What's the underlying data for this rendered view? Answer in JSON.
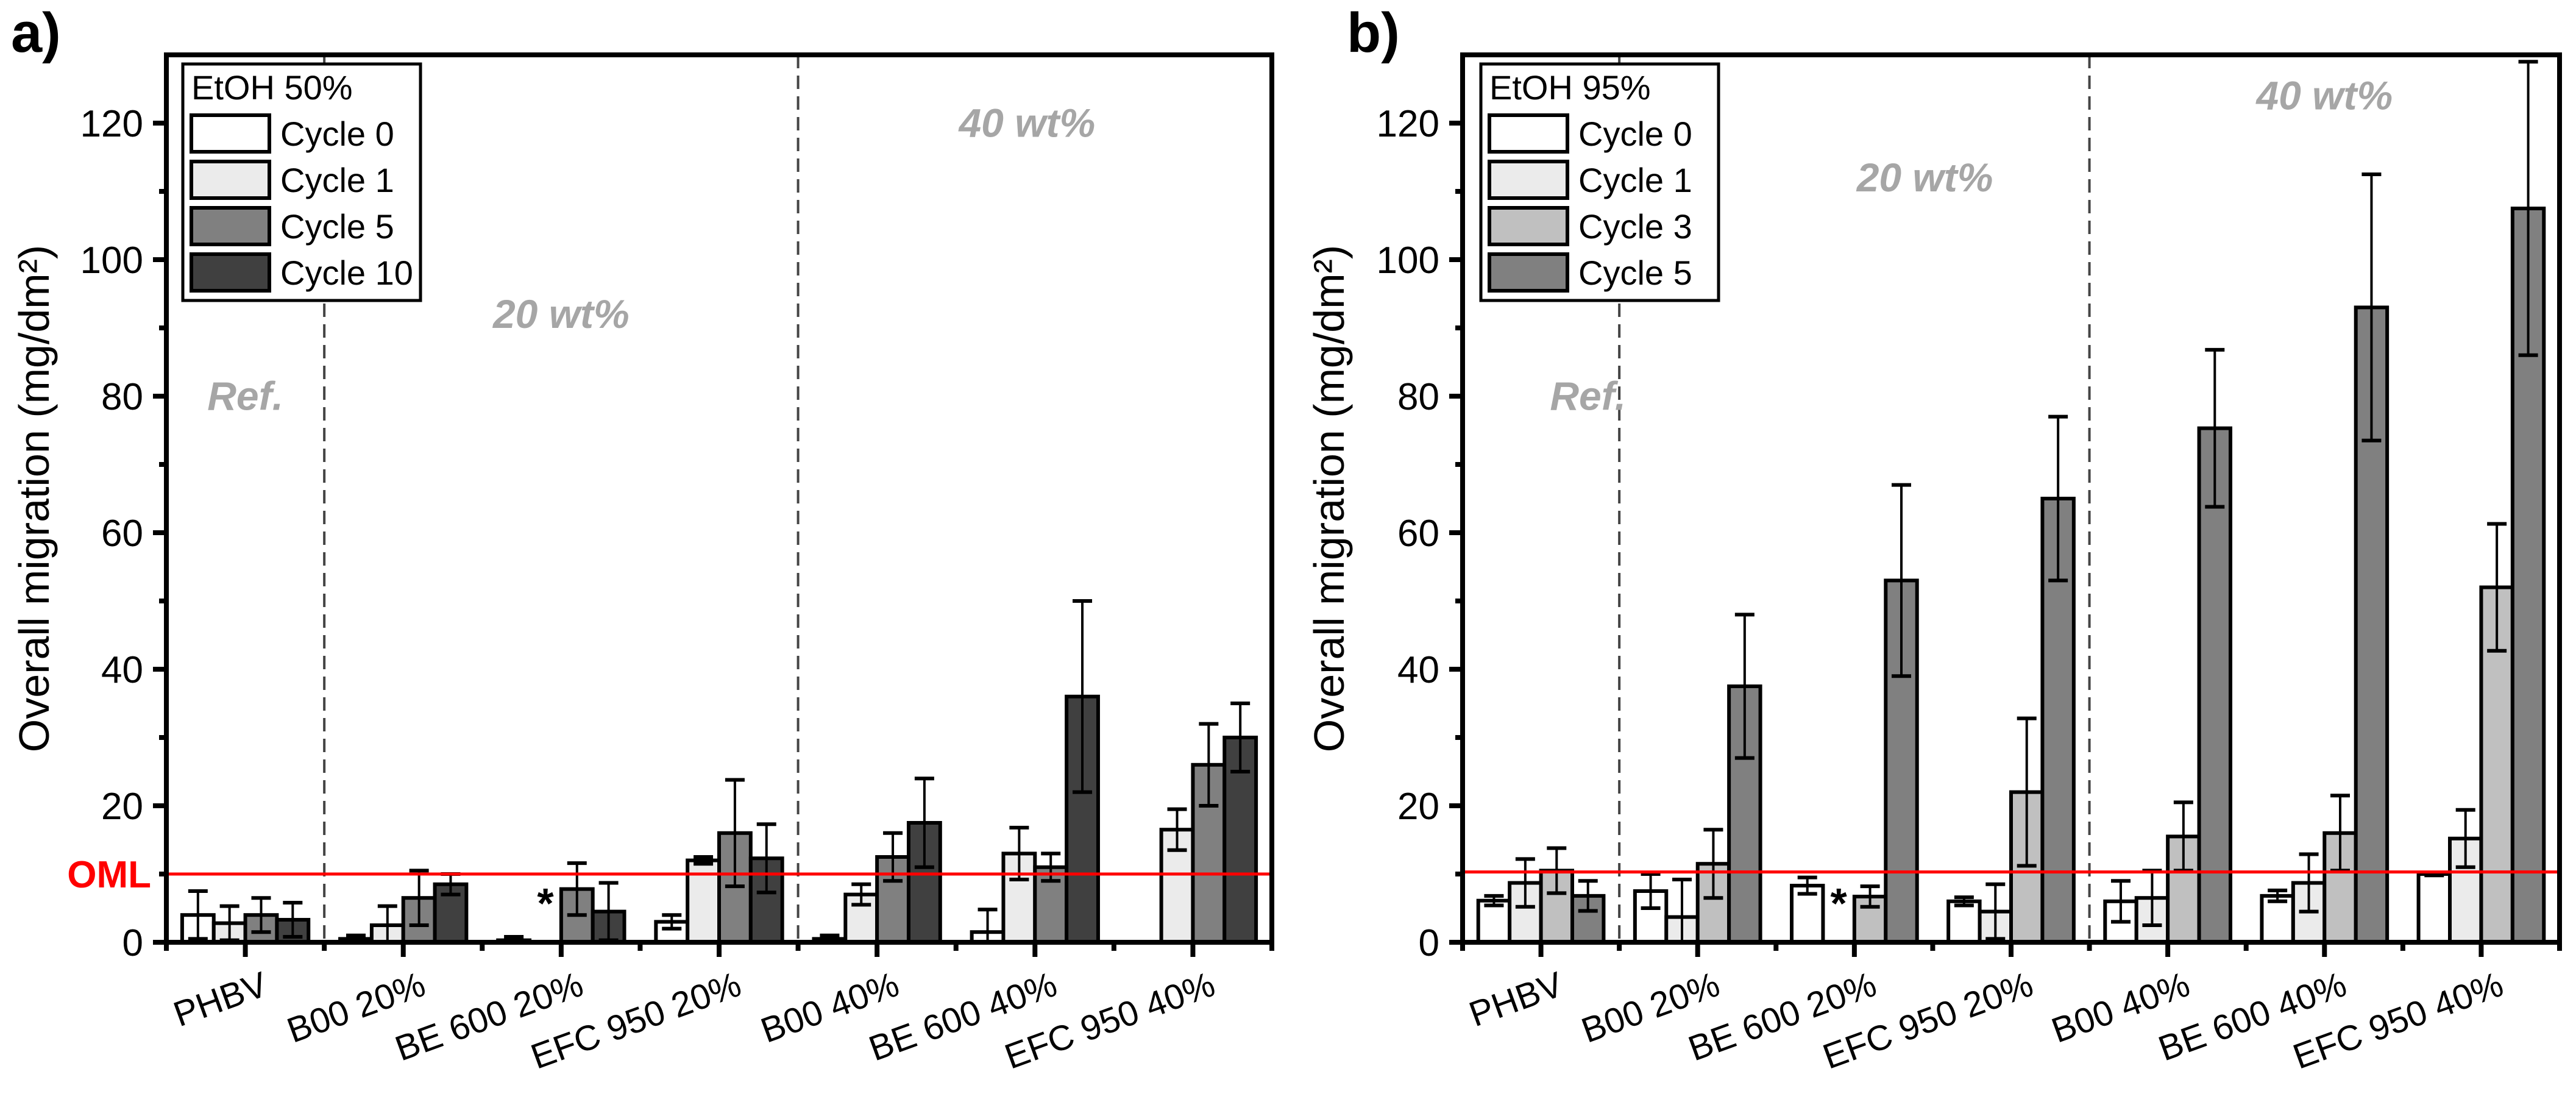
{
  "chart_data": [
    {
      "type": "bar",
      "panel_label": "a)",
      "ylabel": "Overall migration (mg/dm²)",
      "xlabel": "",
      "ylim": [
        0,
        130
      ],
      "yticks": [
        0,
        20,
        40,
        60,
        80,
        100,
        120
      ],
      "categories": [
        "PHBV",
        "B00 20%",
        "BE 600 20%",
        "EFC 950 20%",
        "B00 40%",
        "BE 600 40%",
        "EFC 950 40%"
      ],
      "legend_title": "EtOH 50%",
      "legend_position": "top-left",
      "series": [
        {
          "name": "Cycle 0",
          "color": "#ffffff",
          "values": [
            4.0,
            0.5,
            0.3,
            3.0,
            0.5,
            1.5,
            null
          ],
          "errors": [
            3.5,
            0.5,
            0.5,
            1.0,
            0.5,
            3.3,
            null
          ]
        },
        {
          "name": "Cycle 1",
          "color": "#ebebeb",
          "values": [
            2.8,
            2.5,
            null,
            12.0,
            7.0,
            13.0,
            16.5
          ],
          "errors": [
            2.5,
            2.8,
            null,
            0.5,
            1.5,
            3.8,
            3.0
          ]
        },
        {
          "name": "Cycle 5",
          "color": "#808080",
          "values": [
            4.0,
            6.5,
            7.8,
            16.0,
            12.5,
            11.0,
            26.0
          ],
          "errors": [
            2.5,
            4.0,
            3.8,
            7.8,
            3.5,
            2.0,
            6.0
          ]
        },
        {
          "name": "Cycle 10",
          "color": "#404040",
          "values": [
            3.3,
            8.5,
            4.5,
            12.3,
            17.5,
            36.0,
            30.0
          ],
          "errors": [
            2.5,
            1.5,
            4.2,
            5.0,
            6.5,
            14.0,
            5.0
          ]
        }
      ],
      "asterisk": {
        "category": "BE 600 20%",
        "series": "Cycle 1",
        "text": "*"
      },
      "reference_line": {
        "value": 10,
        "label": "OML",
        "color": "#ff0000"
      },
      "annotations": [
        {
          "text": "Ref.",
          "category_pos": 0,
          "y": 78
        },
        {
          "text": "20 wt%",
          "category_pos": 2.0,
          "y": 90
        },
        {
          "text": "40 wt%",
          "category_pos": 4.95,
          "y": 118
        }
      ],
      "dividers_after": [
        0,
        3
      ]
    },
    {
      "type": "bar",
      "panel_label": "b)",
      "ylabel": "Overall migration (mg/dm²)",
      "xlabel": "",
      "ylim": [
        0,
        130
      ],
      "yticks": [
        0,
        20,
        40,
        60,
        80,
        100,
        120
      ],
      "categories": [
        "PHBV",
        "B00 20%",
        "BE 600 20%",
        "EFC 950 20%",
        "B00 40%",
        "BE 600 40%",
        "EFC 950 40%"
      ],
      "legend_title": "EtOH 95%",
      "legend_position": "top-left",
      "series": [
        {
          "name": "Cycle 0",
          "color": "#ffffff",
          "values": [
            6.1,
            7.5,
            8.3,
            6.0,
            6.0,
            6.8,
            10.0
          ],
          "errors": [
            0.7,
            2.5,
            1.2,
            0.6,
            3.0,
            0.8,
            0.2
          ]
        },
        {
          "name": "Cycle 1",
          "color": "#ebebeb",
          "values": [
            8.7,
            3.7,
            null,
            4.5,
            6.5,
            8.7,
            15.2
          ],
          "errors": [
            3.5,
            5.5,
            null,
            4.0,
            4.0,
            4.2,
            4.2
          ]
        },
        {
          "name": "Cycle 3",
          "color": "#c0c0c0",
          "values": [
            10.5,
            11.5,
            6.7,
            22.0,
            15.5,
            16.0,
            52.0
          ],
          "errors": [
            3.3,
            5.0,
            1.5,
            10.8,
            5.0,
            5.5,
            9.3
          ]
        },
        {
          "name": "Cycle 5",
          "color": "#808080",
          "values": [
            6.8,
            37.5,
            53.0,
            65.0,
            75.3,
            93.0,
            107.5
          ],
          "errors": [
            2.2,
            10.5,
            14.0,
            12.0,
            11.5,
            19.5,
            21.5
          ]
        }
      ],
      "asterisk": {
        "category": "BE 600 20%",
        "series": "Cycle 1",
        "text": "*"
      },
      "reference_line": {
        "value": 10.3,
        "label": "",
        "color": "#ff0000"
      },
      "annotations": [
        {
          "text": "Ref.",
          "category_pos": 0.3,
          "y": 78
        },
        {
          "text": "20 wt%",
          "category_pos": 2.45,
          "y": 110
        },
        {
          "text": "40 wt%",
          "category_pos": 5.0,
          "y": 122
        }
      ],
      "dividers_after": [
        0,
        3
      ]
    }
  ]
}
